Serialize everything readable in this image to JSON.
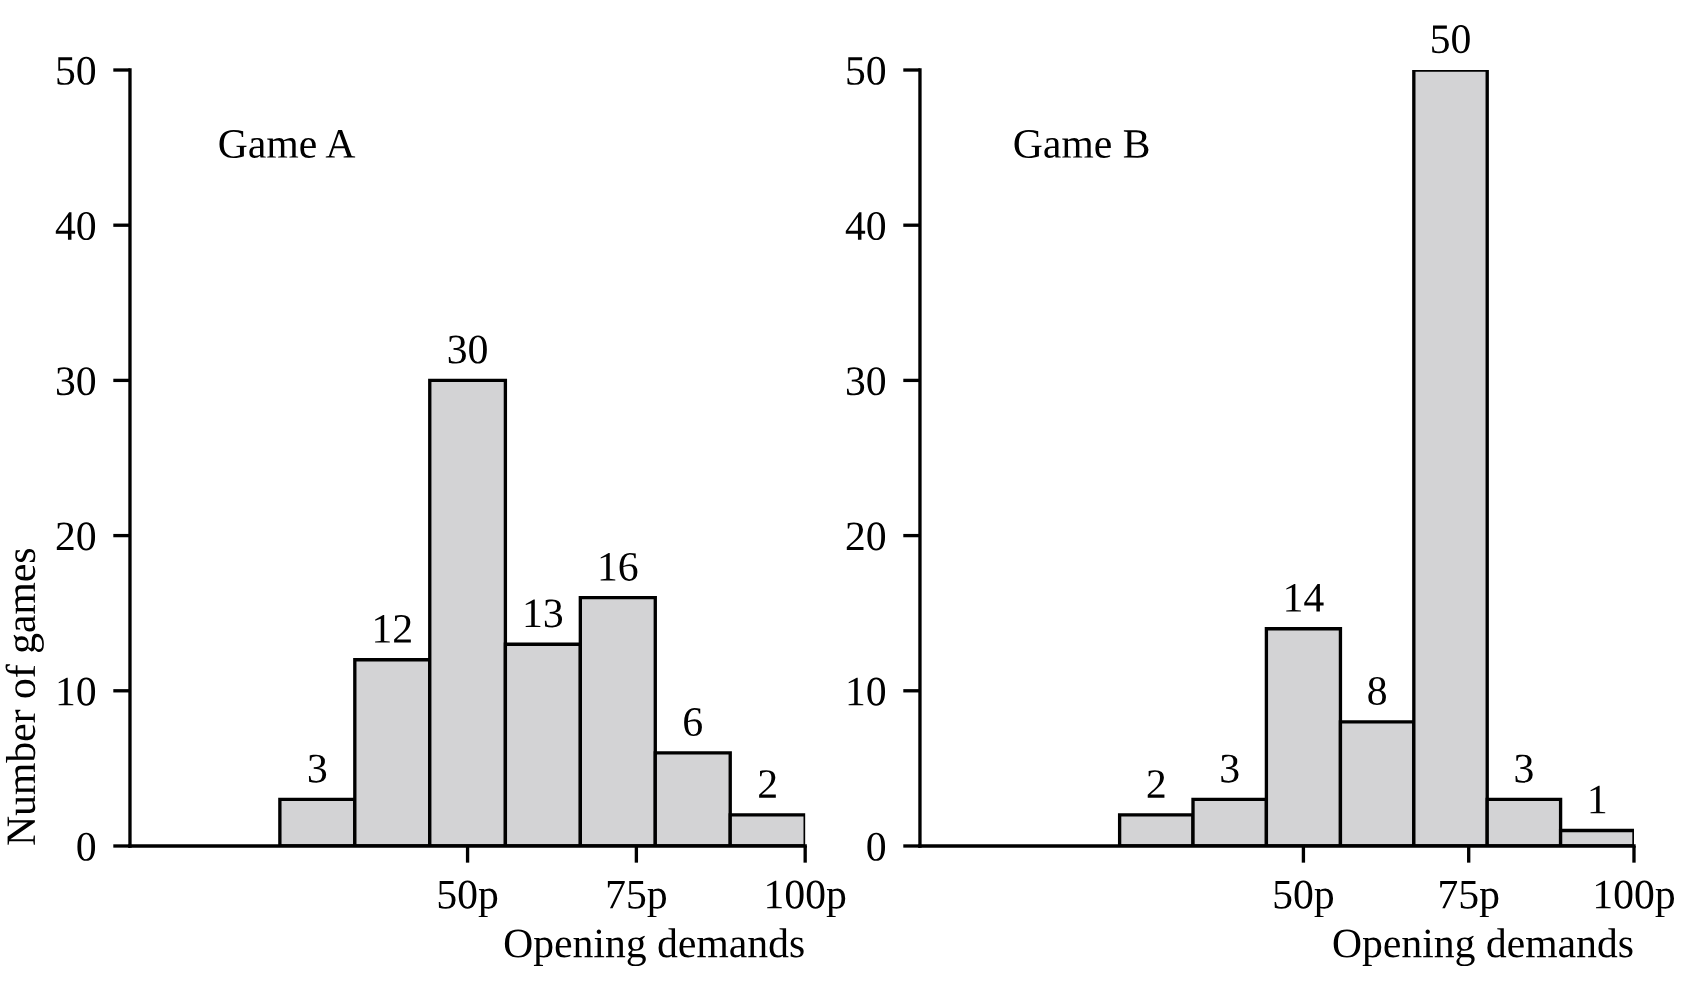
{
  "chart_data": [
    {
      "type": "histogram",
      "title": "Game A",
      "xlabel": "Opening demands",
      "ylabel": "Number of games",
      "bins": [
        22.2,
        33.3,
        44.4,
        55.6,
        66.7,
        77.8,
        88.9,
        100
      ],
      "values": [
        3,
        12,
        30,
        13,
        16,
        6,
        2
      ],
      "color": "#d3d3d5",
      "data_labels": true,
      "xlim": [
        0,
        100
      ],
      "xticks": [
        {
          "value": 50,
          "label": "50p"
        },
        {
          "value": 75,
          "label": "75p"
        },
        {
          "value": 100,
          "label": "100p"
        }
      ],
      "ylim": [
        0,
        50
      ],
      "yticks": [
        0,
        10,
        20,
        30,
        40,
        50
      ],
      "grid": false,
      "legend": false
    },
    {
      "type": "histogram",
      "title": "Game B",
      "xlabel": "Opening demands",
      "bins": [
        22.2,
        33.3,
        44.4,
        55.6,
        66.7,
        77.8,
        88.9,
        100
      ],
      "values": [
        2,
        3,
        14,
        8,
        50,
        3,
        1
      ],
      "color": "#d3d3d5",
      "data_labels": true,
      "xlim": [
        -8,
        100
      ],
      "xticks": [
        {
          "value": 50,
          "label": "50p"
        },
        {
          "value": 75,
          "label": "75p"
        },
        {
          "value": 100,
          "label": "100p"
        }
      ],
      "ylim": [
        0,
        50
      ],
      "yticks": [
        0,
        10,
        20,
        30,
        40,
        50
      ],
      "grid": false,
      "legend": false
    }
  ]
}
